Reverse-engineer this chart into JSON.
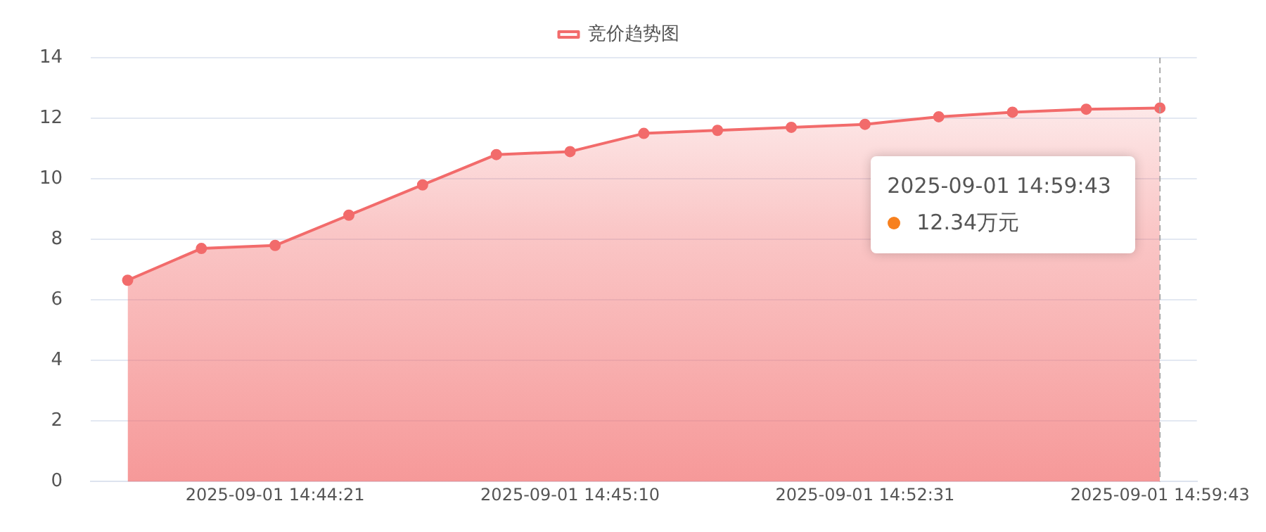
{
  "chart_data": {
    "type": "area",
    "categories": [
      null,
      null,
      "2025-09-01 14:44:21",
      null,
      null,
      null,
      "2025-09-01 14:45:10",
      null,
      null,
      null,
      "2025-09-01 14:52:31",
      null,
      null,
      null,
      "2025-09-01 14:59:43"
    ],
    "series": [
      {
        "name": "竞价趋势图",
        "color": "#f26b6b",
        "values": [
          6.65,
          7.7,
          7.8,
          8.8,
          9.8,
          10.8,
          10.9,
          11.5,
          11.6,
          11.7,
          11.8,
          12.05,
          12.2,
          12.3,
          12.34
        ]
      }
    ],
    "ylim": [
      0,
      14
    ],
    "yticks": [
      0,
      2,
      4,
      6,
      8,
      10,
      12,
      14
    ],
    "grid": "y",
    "legend": "top",
    "marker": "circle",
    "line_style": "solid",
    "annotations": [
      "2025-09-01 14:59:43",
      "12.34万元"
    ]
  }
}
